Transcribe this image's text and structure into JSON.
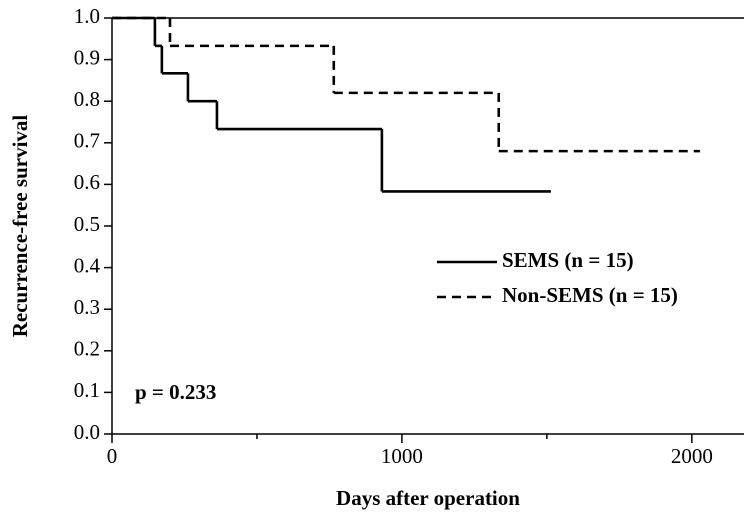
{
  "chart_data": {
    "type": "step",
    "x_label": "Days after operation",
    "y_label": "Recurrence-free survival",
    "annotation": "p = 0.233",
    "xlim": [
      0,
      2180
    ],
    "ylim": [
      0,
      1
    ],
    "xticks": [
      0,
      1000,
      2000
    ],
    "xminorticks": [
      500,
      1500
    ],
    "yticks": [
      {
        "value": 0,
        "label": "0.0"
      },
      0.1,
      0.2,
      0.3,
      0.4,
      0.5,
      0.6,
      0.7,
      0.8,
      0.9,
      {
        "value": 1,
        "label": "1.0"
      }
    ],
    "series": [
      {
        "name": "SEMS (n = 15)",
        "color": "#000000",
        "dashed": false,
        "x": [
          0,
          148,
          172,
          262,
          362,
          931,
          1514
        ],
        "values": [
          1.0,
          0.933,
          0.867,
          0.8,
          0.733,
          0.583,
          0.583
        ]
      },
      {
        "name": "Non-SEMS (n = 15)",
        "color": "#000000",
        "dashed": true,
        "x": [
          0,
          200,
          765,
          1334,
          2028
        ],
        "values": [
          1.0,
          0.933,
          0.82,
          0.68,
          0.68
        ]
      }
    ]
  }
}
